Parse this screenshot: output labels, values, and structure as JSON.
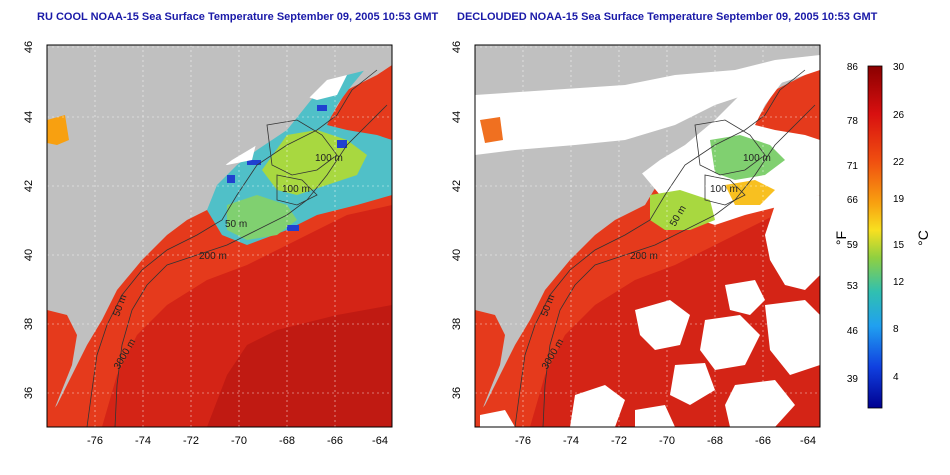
{
  "left_panel": {
    "title": "RU COOL NOAA-15 Sea Surface Temperature September 09, 2005 10:53 GMT",
    "x_ticks": [
      "-76",
      "-74",
      "-72",
      "-70",
      "-68",
      "-66",
      "-64"
    ],
    "y_ticks": [
      "46",
      "44",
      "42",
      "40",
      "38",
      "36"
    ],
    "contours": [
      "100 m",
      "100 m",
      "50 m",
      "200 m",
      "50 m",
      "3000 m"
    ]
  },
  "right_panel": {
    "title": "DECLOUDED NOAA-15 Sea Surface Temperature September 09, 2005 10:53 GMT",
    "x_ticks": [
      "-76",
      "-74",
      "-72",
      "-70",
      "-68",
      "-66",
      "-64"
    ],
    "y_ticks": [
      "46",
      "44",
      "42",
      "40",
      "38",
      "36"
    ],
    "contours": [
      "100 m",
      "100 m",
      "50 m",
      "200 m",
      "50 m",
      "3000 m"
    ]
  },
  "colorbar": {
    "f_unit": "°F",
    "c_unit": "°C",
    "f_ticks": [
      "86",
      "78",
      "71",
      "66",
      "59",
      "53",
      "46",
      "39"
    ],
    "c_ticks": [
      "30",
      "26",
      "22",
      "19",
      "15",
      "12",
      "8",
      "4"
    ]
  },
  "colors": {
    "land": "#c0c0c0",
    "cloud": "#ffffff",
    "title": "#1a1aa8",
    "warm": "#e53a1c",
    "hot": "#c81414",
    "cool": "#4ac0d8",
    "cold": "#2040d0"
  }
}
